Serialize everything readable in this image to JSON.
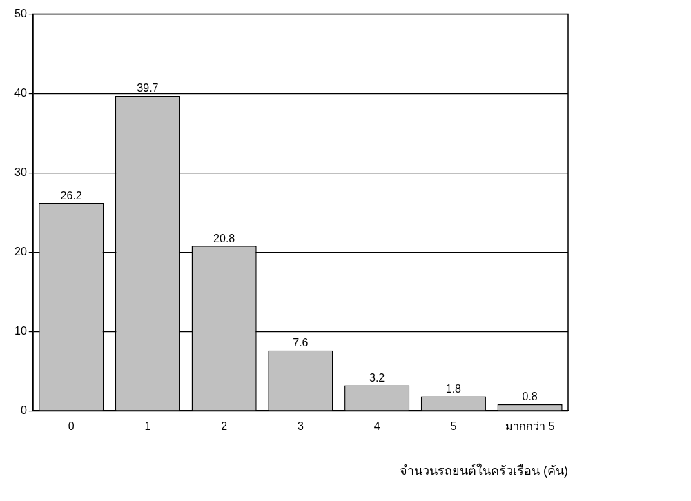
{
  "chart_data": {
    "type": "bar",
    "xlabel": "จำนวนรถยนต์ในครัวเรือน (คัน)",
    "categories": [
      "0",
      "1",
      "2",
      "3",
      "4",
      "5",
      "มากกว่า 5"
    ],
    "values": [
      26.2,
      39.7,
      20.8,
      7.6,
      3.2,
      1.8,
      0.8
    ],
    "color": "#c0c0c0",
    "ylim": [
      0,
      50
    ],
    "yticks": [
      0,
      10,
      20,
      30,
      40,
      50
    ],
    "grid": "y",
    "data_labels": true,
    "legend": false
  }
}
